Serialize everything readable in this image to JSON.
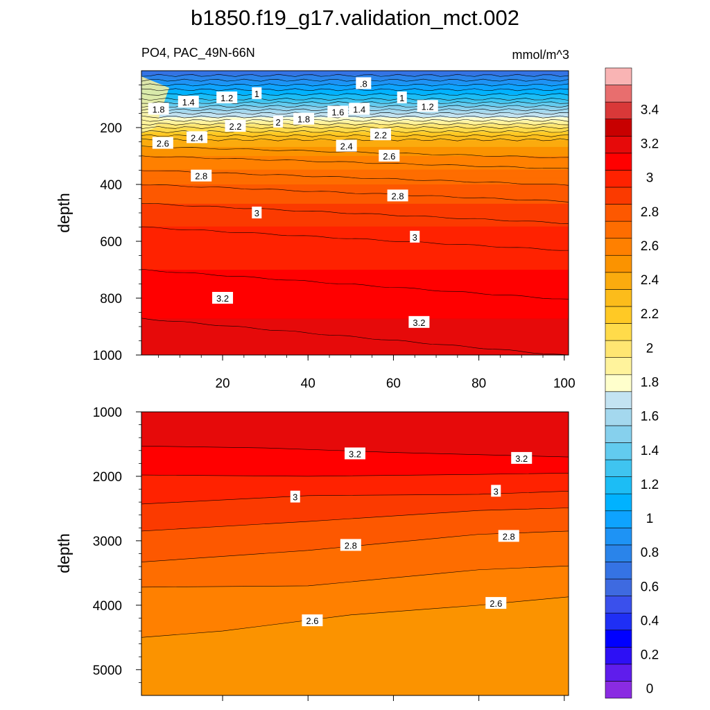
{
  "chart_data": {
    "type": "heatmap",
    "title": "b1850.f19_g17.validation_mct.002",
    "subtitle_left": "PO4, PAC_49N-66N",
    "subtitle_right": "mmol/m^3",
    "ylabel": "depth",
    "colorbar_labels": [
      "0",
      "0.2",
      "0.4",
      "0.6",
      "0.8",
      "1",
      "1.2",
      "1.4",
      "1.6",
      "1.8",
      "2",
      "2.2",
      "2.4",
      "2.6",
      "2.8",
      "3",
      "3.2",
      "3.4"
    ],
    "colorbar": {
      "levels": [
        0,
        0.1,
        0.2,
        0.3,
        0.4,
        0.5,
        0.6,
        0.7,
        0.8,
        0.9,
        1.0,
        1.1,
        1.2,
        1.3,
        1.4,
        1.5,
        1.6,
        1.7,
        1.8,
        1.9,
        2.0,
        2.1,
        2.2,
        2.3,
        2.4,
        2.5,
        2.6,
        2.7,
        2.8,
        2.9,
        3.0,
        3.1,
        3.2,
        3.3,
        3.4,
        3.5,
        3.6
      ],
      "colors": [
        "#8a2be2",
        "#5f1dec",
        "#2d10f5",
        "#0000ff",
        "#1f2ff5",
        "#3a50ec",
        "#3e6ae0",
        "#3573e4",
        "#2a84ea",
        "#1e93f5",
        "#0ea3ff",
        "#00b2ff",
        "#1cbdf5",
        "#3fc4f0",
        "#62cbef",
        "#86d0ed",
        "#a4d8ee",
        "#c3e3f2",
        "#ffffcc",
        "#fff39c",
        "#ffe672",
        "#ffdb4a",
        "#ffc925",
        "#fcbc1b",
        "#fbab0e",
        "#fb9300",
        "#ff8000",
        "#fe6d00",
        "#fd5800",
        "#fb3a00",
        "#ff2200",
        "#ff0000",
        "#e60a0a",
        "#c80000",
        "#d93838",
        "#e86e6e",
        "#f9b4b4"
      ]
    },
    "top_panel": {
      "x_ticks": [
        "20",
        "40",
        "60",
        "80",
        "100"
      ],
      "x_tick_values": [
        20,
        40,
        60,
        80,
        100
      ],
      "xlim": [
        1,
        101
      ],
      "y_ticks": [
        "200",
        "400",
        "600",
        "800",
        "1000"
      ],
      "y_tick_values": [
        200,
        400,
        600,
        800,
        1000
      ],
      "ylim": [
        0,
        1000
      ],
      "contour_labels": [
        {
          "text": "1.8",
          "x": 5,
          "y": 135
        },
        {
          "text": "1.4",
          "x": 12,
          "y": 110
        },
        {
          "text": "1.2",
          "x": 21,
          "y": 95
        },
        {
          "text": "1",
          "x": 28,
          "y": 80
        },
        {
          "text": ".8",
          "x": 53,
          "y": 45
        },
        {
          "text": "1",
          "x": 62,
          "y": 95
        },
        {
          "text": "1.2",
          "x": 68,
          "y": 125
        },
        {
          "text": "1.4",
          "x": 52,
          "y": 135
        },
        {
          "text": "1.6",
          "x": 47,
          "y": 145
        },
        {
          "text": "1.8",
          "x": 39,
          "y": 170
        },
        {
          "text": "2",
          "x": 33,
          "y": 180
        },
        {
          "text": "2.2",
          "x": 23,
          "y": 195
        },
        {
          "text": "2.4",
          "x": 14,
          "y": 235
        },
        {
          "text": "2.6",
          "x": 6,
          "y": 255
        },
        {
          "text": "2.2",
          "x": 57,
          "y": 225
        },
        {
          "text": "2.4",
          "x": 49,
          "y": 265
        },
        {
          "text": "2.6",
          "x": 59,
          "y": 300
        },
        {
          "text": "2.8",
          "x": 15,
          "y": 370
        },
        {
          "text": "2.8",
          "x": 61,
          "y": 440
        },
        {
          "text": "3",
          "x": 28,
          "y": 500
        },
        {
          "text": "3",
          "x": 65,
          "y": 585
        },
        {
          "text": "3.2",
          "x": 20,
          "y": 800
        },
        {
          "text": "3.2",
          "x": 66,
          "y": 885
        }
      ],
      "depth_profile": [
        {
          "depth": 0,
          "value": 0.7
        },
        {
          "depth": 50,
          "value": 1.0
        },
        {
          "depth": 100,
          "value": 1.3
        },
        {
          "depth": 150,
          "value": 1.7
        },
        {
          "depth": 200,
          "value": 2.1
        },
        {
          "depth": 250,
          "value": 2.45
        },
        {
          "depth": 300,
          "value": 2.6
        },
        {
          "depth": 400,
          "value": 2.8
        },
        {
          "depth": 500,
          "value": 2.95
        },
        {
          "depth": 600,
          "value": 3.05
        },
        {
          "depth": 700,
          "value": 3.1
        },
        {
          "depth": 800,
          "value": 3.15
        },
        {
          "depth": 900,
          "value": 3.22
        },
        {
          "depth": 1000,
          "value": 3.25
        }
      ]
    },
    "bottom_panel": {
      "y_ticks": [
        "1000",
        "2000",
        "3000",
        "4000",
        "5000"
      ],
      "y_tick_values": [
        1000,
        2000,
        3000,
        4000,
        5000
      ],
      "ylim": [
        1000,
        5400
      ],
      "xlim": [
        1,
        101
      ],
      "contour_labels": [
        {
          "text": "3.2",
          "x": 51,
          "y": 1650
        },
        {
          "text": "3.2",
          "x": 90,
          "y": 1720
        },
        {
          "text": "3",
          "x": 37,
          "y": 2320
        },
        {
          "text": "3",
          "x": 84,
          "y": 2230
        },
        {
          "text": "2.8",
          "x": 50,
          "y": 3070
        },
        {
          "text": "2.8",
          "x": 87,
          "y": 2930
        },
        {
          "text": "2.6",
          "x": 41,
          "y": 4240
        },
        {
          "text": "2.6",
          "x": 84,
          "y": 3970
        }
      ],
      "contours": [
        {
          "level": 3.2,
          "points": [
            [
              1,
              1530
            ],
            [
              30,
              1560
            ],
            [
              60,
              1630
            ],
            [
              101,
              1700
            ]
          ]
        },
        {
          "level": 3.1,
          "points": [
            [
              1,
              1980
            ],
            [
              40,
              2000
            ],
            [
              80,
              1970
            ],
            [
              101,
              1950
            ]
          ]
        },
        {
          "level": 3.0,
          "points": [
            [
              1,
              2430
            ],
            [
              40,
              2300
            ],
            [
              80,
              2280
            ],
            [
              101,
              2230
            ]
          ]
        },
        {
          "level": 2.9,
          "points": [
            [
              1,
              2850
            ],
            [
              40,
              2700
            ],
            [
              80,
              2530
            ],
            [
              101,
              2490
            ]
          ]
        },
        {
          "level": 2.8,
          "points": [
            [
              1,
              3330
            ],
            [
              40,
              3150
            ],
            [
              80,
              2900
            ],
            [
              101,
              2850
            ]
          ]
        },
        {
          "level": 2.7,
          "points": [
            [
              1,
              3720
            ],
            [
              40,
              3700
            ],
            [
              80,
              3450
            ],
            [
              101,
              3390
            ]
          ]
        },
        {
          "level": 2.6,
          "points": [
            [
              1,
              4500
            ],
            [
              20,
              4400
            ],
            [
              50,
              4150
            ],
            [
              80,
              4000
            ],
            [
              101,
              3870
            ]
          ]
        }
      ]
    }
  }
}
